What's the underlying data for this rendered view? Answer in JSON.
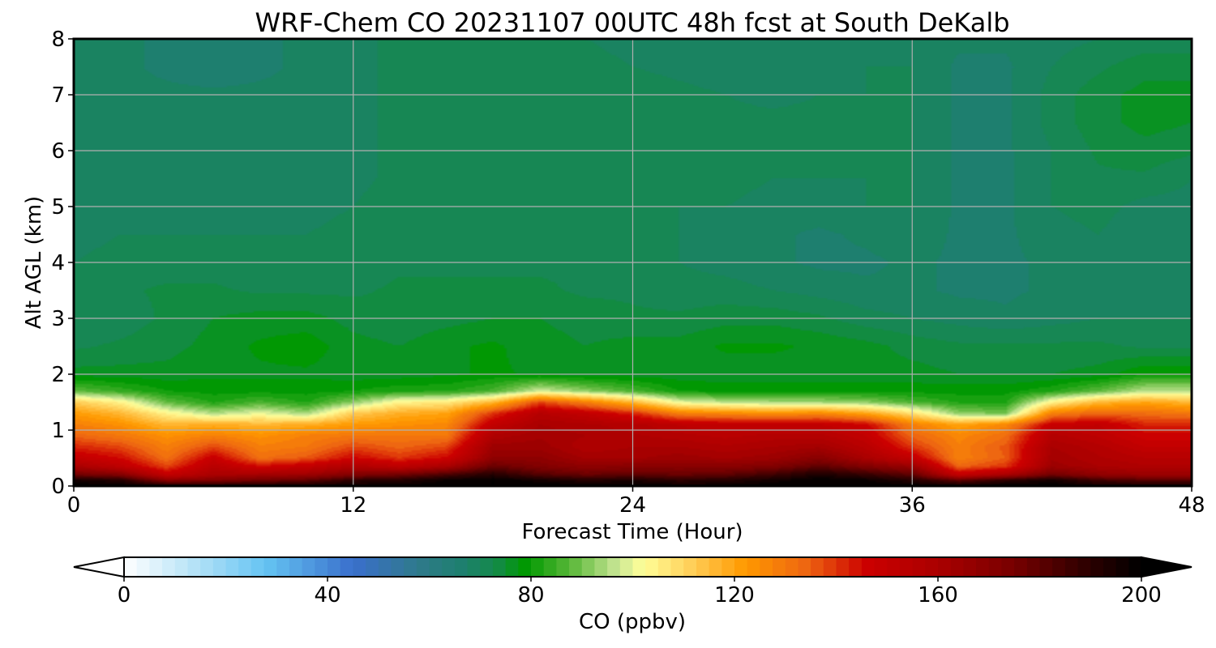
{
  "chart_data": {
    "type": "heatmap",
    "title": "WRF-Chem CO  20231107 00UTC 48h fcst at South DeKalb",
    "xlabel": "Forecast Time (Hour)",
    "ylabel": "Alt AGL (km)",
    "x_ticks": [
      0,
      12,
      24,
      36,
      48
    ],
    "y_ticks": [
      0,
      1,
      2,
      3,
      4,
      5,
      6,
      7,
      8
    ],
    "xlim": [
      0,
      48
    ],
    "ylim": [
      0,
      8
    ],
    "grid": true,
    "z_units": "ppbv",
    "colorbar": {
      "label": "CO  (ppbv)",
      "ticks": [
        0,
        40,
        80,
        120,
        160,
        200
      ],
      "range": [
        0,
        200
      ],
      "extend": "both",
      "orientation": "horizontal",
      "stops": [
        {
          "value": 0,
          "color": "#ffffff"
        },
        {
          "value": 12,
          "color": "#bfe6f8"
        },
        {
          "value": 28,
          "color": "#64c3f2"
        },
        {
          "value": 45,
          "color": "#3a6fcc"
        },
        {
          "value": 58,
          "color": "#2f7a8a"
        },
        {
          "value": 66,
          "color": "#1e7f70"
        },
        {
          "value": 73,
          "color": "#14894a"
        },
        {
          "value": 79,
          "color": "#009900"
        },
        {
          "value": 88,
          "color": "#5cb83a"
        },
        {
          "value": 97,
          "color": "#c8e694"
        },
        {
          "value": 102,
          "color": "#ffff99"
        },
        {
          "value": 112,
          "color": "#ffcc55"
        },
        {
          "value": 122,
          "color": "#ff9900"
        },
        {
          "value": 134,
          "color": "#ee6611"
        },
        {
          "value": 146,
          "color": "#cc0000"
        },
        {
          "value": 160,
          "color": "#aa0000"
        },
        {
          "value": 175,
          "color": "#770000"
        },
        {
          "value": 188,
          "color": "#330000"
        },
        {
          "value": 200,
          "color": "#000000"
        }
      ]
    },
    "x": [
      0,
      2,
      4,
      6,
      8,
      10,
      12,
      14,
      16,
      18,
      20,
      22,
      24,
      26,
      28,
      30,
      32,
      34,
      36,
      38,
      40,
      42,
      44,
      46,
      48
    ],
    "y": [
      0,
      0.1,
      0.2,
      0.35,
      0.5,
      0.7,
      0.9,
      1.1,
      1.3,
      1.5,
      1.7,
      2.0,
      2.5,
      3.0,
      3.5,
      4.0,
      4.5,
      5.0,
      5.5,
      6.0,
      6.5,
      7.0,
      7.5,
      8.0
    ],
    "z": [
      [
        200,
        199,
        195,
        194,
        195,
        196,
        198,
        199,
        200,
        200,
        200,
        200,
        200,
        198,
        198,
        200,
        200,
        200,
        199,
        197,
        200,
        200,
        196,
        195,
        195
      ],
      [
        196,
        192,
        170,
        172,
        176,
        180,
        190,
        192,
        198,
        200,
        196,
        192,
        194,
        190,
        192,
        196,
        200,
        198,
        192,
        180,
        190,
        196,
        186,
        182,
        182
      ],
      [
        176,
        172,
        150,
        160,
        162,
        164,
        172,
        176,
        184,
        192,
        182,
        178,
        180,
        178,
        180,
        186,
        194,
        188,
        180,
        150,
        160,
        176,
        168,
        165,
        165
      ],
      [
        160,
        152,
        138,
        154,
        145,
        150,
        158,
        152,
        160,
        178,
        172,
        168,
        170,
        170,
        170,
        172,
        180,
        172,
        165,
        134,
        140,
        164,
        160,
        158,
        158
      ],
      [
        150,
        145,
        132,
        148,
        132,
        136,
        146,
        140,
        146,
        168,
        168,
        162,
        162,
        164,
        162,
        164,
        170,
        160,
        150,
        128,
        135,
        162,
        158,
        155,
        155
      ],
      [
        142,
        138,
        128,
        138,
        128,
        130,
        138,
        134,
        138,
        164,
        164,
        158,
        160,
        160,
        158,
        160,
        162,
        154,
        140,
        128,
        136,
        160,
        156,
        150,
        150
      ],
      [
        134,
        130,
        124,
        128,
        124,
        128,
        130,
        130,
        130,
        158,
        162,
        160,
        158,
        156,
        154,
        156,
        156,
        150,
        134,
        126,
        132,
        156,
        152,
        146,
        146
      ],
      [
        128,
        124,
        116,
        118,
        116,
        118,
        122,
        124,
        126,
        150,
        160,
        158,
        156,
        152,
        150,
        150,
        150,
        146,
        128,
        120,
        126,
        148,
        150,
        142,
        142
      ],
      [
        122,
        116,
        104,
        95,
        100,
        94,
        112,
        118,
        120,
        140,
        155,
        150,
        142,
        128,
        126,
        124,
        126,
        120,
        108,
        92,
        90,
        128,
        134,
        132,
        130
      ],
      [
        112,
        104,
        88,
        82,
        86,
        82,
        92,
        104,
        106,
        116,
        138,
        128,
        116,
        100,
        96,
        94,
        94,
        92,
        86,
        82,
        82,
        104,
        116,
        120,
        116
      ],
      [
        88,
        84,
        80,
        79,
        79,
        79,
        80,
        82,
        82,
        86,
        98,
        92,
        86,
        80,
        79,
        79,
        79,
        79,
        79,
        79,
        79,
        82,
        88,
        96,
        96
      ],
      [
        76,
        76,
        76,
        77,
        77,
        77,
        76,
        76,
        77,
        78,
        77,
        76,
        76,
        76,
        76,
        76,
        76,
        76,
        76,
        75,
        75,
        75,
        76,
        80,
        80
      ],
      [
        72,
        73,
        74,
        76,
        78,
        79,
        76,
        75,
        77,
        78,
        76,
        75,
        76,
        76,
        78,
        78,
        77,
        76,
        74,
        73,
        73,
        73,
        73,
        72,
        72
      ],
      [
        70,
        71,
        73,
        75,
        76,
        76,
        74,
        73,
        74,
        75,
        75,
        74,
        73,
        73,
        74,
        74,
        73,
        71,
        70,
        69,
        68,
        69,
        70,
        70,
        70
      ],
      [
        70,
        72,
        73,
        73,
        72,
        72,
        72,
        73,
        73,
        73,
        73,
        72,
        72,
        71,
        71,
        70,
        69,
        68,
        68,
        67,
        67,
        68,
        69,
        68,
        68
      ],
      [
        70,
        71,
        71,
        71,
        70,
        70,
        71,
        72,
        72,
        72,
        72,
        72,
        71,
        70,
        69,
        68,
        67,
        67,
        68,
        67,
        67,
        68,
        70,
        68,
        68
      ],
      [
        69,
        70,
        70,
        70,
        70,
        70,
        71,
        72,
        72,
        72,
        72,
        72,
        71,
        70,
        69,
        68,
        67,
        68,
        69,
        67,
        67,
        69,
        70,
        68,
        68
      ],
      [
        69,
        69,
        70,
        69,
        69,
        69,
        70,
        72,
        72,
        72,
        72,
        72,
        71,
        70,
        70,
        69,
        69,
        70,
        70,
        67,
        67,
        70,
        71,
        69,
        69
      ],
      [
        68,
        69,
        69,
        68,
        68,
        68,
        69,
        71,
        72,
        72,
        72,
        72,
        72,
        71,
        71,
        70,
        70,
        70,
        70,
        67,
        67,
        70,
        72,
        72,
        70
      ],
      [
        69,
        70,
        69,
        68,
        68,
        68,
        69,
        71,
        72,
        72,
        72,
        72,
        72,
        72,
        71,
        71,
        71,
        71,
        70,
        67,
        67,
        70,
        73,
        74,
        73
      ],
      [
        70,
        70,
        69,
        68,
        68,
        68,
        69,
        71,
        72,
        72,
        72,
        72,
        72,
        72,
        71,
        71,
        71,
        71,
        70,
        67,
        67,
        71,
        74,
        76,
        75
      ],
      [
        68,
        68,
        68,
        68,
        68,
        68,
        69,
        71,
        72,
        72,
        72,
        72,
        72,
        71,
        70,
        69,
        70,
        70,
        70,
        67,
        67,
        71,
        74,
        76,
        76
      ],
      [
        68,
        68,
        67,
        66,
        67,
        68,
        69,
        71,
        72,
        72,
        72,
        71,
        70,
        69,
        68,
        68,
        69,
        70,
        70,
        67,
        67,
        70,
        72,
        74,
        74
      ],
      [
        68,
        68,
        67,
        66,
        67,
        68,
        69,
        71,
        72,
        72,
        71,
        70,
        69,
        68,
        68,
        68,
        69,
        69,
        69,
        68,
        68,
        69,
        70,
        71,
        71
      ]
    ]
  }
}
